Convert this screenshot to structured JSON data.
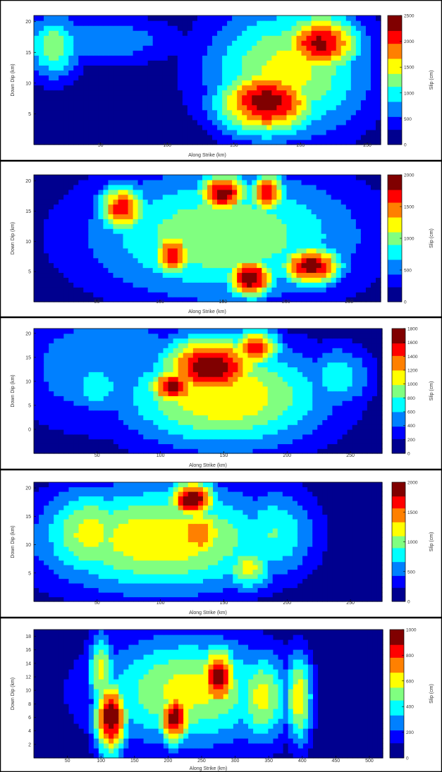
{
  "colormap": [
    "#00008f",
    "#0000ff",
    "#0080ff",
    "#00ffff",
    "#80ff80",
    "#ffff00",
    "#ff8000",
    "#ff0000",
    "#800000"
  ],
  "chart_data": [
    {
      "type": "heatmap",
      "title": "",
      "xlabel": "Along Strike (km)",
      "ylabel": "Down Dip (km)",
      "colorbar_label": "Slip (cm)",
      "xlim": [
        0,
        260
      ],
      "ylim": [
        0,
        21
      ],
      "xticks": [
        50,
        100,
        150,
        200,
        250
      ],
      "yticks": [
        5,
        10,
        15,
        20
      ],
      "clim": [
        0,
        2500
      ],
      "cticks": [
        0,
        500,
        1000,
        1500,
        2000,
        2500
      ],
      "peaks": [
        {
          "x": 215,
          "y": 16.5,
          "value": 2300,
          "sx": 22,
          "sy": 3.5
        },
        {
          "x": 175,
          "y": 7,
          "value": 2400,
          "sx": 28,
          "sy": 4
        },
        {
          "x": 190,
          "y": 12,
          "value": 1500,
          "sx": 45,
          "sy": 8
        },
        {
          "x": 15,
          "y": 16,
          "value": 1300,
          "sx": 15,
          "sy": 4
        },
        {
          "x": 50,
          "y": 17,
          "value": 800,
          "sx": 45,
          "sy": 3
        }
      ]
    },
    {
      "type": "heatmap",
      "title": "",
      "xlabel": "Along Strike (km)",
      "ylabel": "Down Dip (km)",
      "colorbar_label": "Slip (cm)",
      "xlim": [
        0,
        275
      ],
      "ylim": [
        0,
        21
      ],
      "xticks": [
        50,
        100,
        150,
        200,
        250
      ],
      "yticks": [
        5,
        10,
        15,
        20
      ],
      "clim": [
        0,
        2000
      ],
      "cticks": [
        0,
        500,
        1000,
        1500,
        2000
      ],
      "peaks": [
        {
          "x": 70,
          "y": 15.5,
          "value": 1700,
          "sx": 14,
          "sy": 3
        },
        {
          "x": 150,
          "y": 18,
          "value": 1900,
          "sx": 15,
          "sy": 2.5
        },
        {
          "x": 185,
          "y": 18,
          "value": 1800,
          "sx": 10,
          "sy": 2.5
        },
        {
          "x": 110,
          "y": 8,
          "value": 1700,
          "sx": 12,
          "sy": 3
        },
        {
          "x": 172,
          "y": 4,
          "value": 2000,
          "sx": 14,
          "sy": 2.5
        },
        {
          "x": 220,
          "y": 6,
          "value": 1900,
          "sx": 18,
          "sy": 2.5
        },
        {
          "x": 150,
          "y": 11,
          "value": 1100,
          "sx": 80,
          "sy": 8
        }
      ]
    },
    {
      "type": "heatmap",
      "title": "",
      "xlabel": "Along Strike (km)",
      "ylabel": "Down Dip (km)",
      "colorbar_label": "Slip (cm)",
      "xlim": [
        0,
        275
      ],
      "ylim": [
        -5,
        21
      ],
      "xticks": [
        50,
        100,
        150,
        200,
        250
      ],
      "yticks": [
        0,
        5,
        10,
        15,
        20
      ],
      "clim": [
        0,
        1800
      ],
      "cticks": [
        0,
        200,
        400,
        600,
        800,
        1000,
        1200,
        1400,
        1600,
        1800
      ],
      "peaks": [
        {
          "x": 140,
          "y": 13,
          "value": 1750,
          "sx": 30,
          "sy": 5
        },
        {
          "x": 110,
          "y": 9,
          "value": 1700,
          "sx": 15,
          "sy": 3
        },
        {
          "x": 175,
          "y": 17,
          "value": 1500,
          "sx": 15,
          "sy": 3
        },
        {
          "x": 150,
          "y": 7,
          "value": 1200,
          "sx": 60,
          "sy": 8
        },
        {
          "x": 50,
          "y": 9,
          "value": 800,
          "sx": 15,
          "sy": 4
        },
        {
          "x": 240,
          "y": 11,
          "value": 750,
          "sx": 20,
          "sy": 5
        },
        {
          "x": 60,
          "y": 13,
          "value": 600,
          "sx": 60,
          "sy": 10
        }
      ]
    },
    {
      "type": "heatmap",
      "title": "",
      "xlabel": "Along Strike (km)",
      "ylabel": "Down Dip (km)",
      "colorbar_label": "Slip (cm)",
      "xlim": [
        0,
        275
      ],
      "ylim": [
        0,
        21
      ],
      "xticks": [
        50,
        100,
        150,
        200,
        250
      ],
      "yticks": [
        5,
        10,
        15,
        20
      ],
      "clim": [
        0,
        2000
      ],
      "cticks": [
        0,
        500,
        1000,
        1500,
        2000
      ],
      "peaks": [
        {
          "x": 125,
          "y": 18,
          "value": 2000,
          "sx": 14,
          "sy": 2.5
        },
        {
          "x": 130,
          "y": 12,
          "value": 1500,
          "sx": 18,
          "sy": 4
        },
        {
          "x": 100,
          "y": 11,
          "value": 1300,
          "sx": 70,
          "sy": 7
        },
        {
          "x": 45,
          "y": 12,
          "value": 1200,
          "sx": 30,
          "sy": 6
        },
        {
          "x": 170,
          "y": 6,
          "value": 1200,
          "sx": 15,
          "sy": 3
        },
        {
          "x": 190,
          "y": 12,
          "value": 900,
          "sx": 25,
          "sy": 6
        }
      ]
    },
    {
      "type": "heatmap",
      "title": "",
      "xlabel": "Along Strike (km)",
      "ylabel": "Down Dip (km)",
      "colorbar_label": "Slip (cm)",
      "xlim": [
        0,
        520
      ],
      "ylim": [
        0,
        19
      ],
      "xticks": [
        50,
        100,
        150,
        200,
        250,
        300,
        350,
        400,
        450,
        500
      ],
      "yticks": [
        2,
        4,
        6,
        8,
        10,
        12,
        14,
        16,
        18
      ],
      "clim": [
        0,
        1000
      ],
      "cticks": [
        0,
        200,
        400,
        600,
        800,
        1000
      ],
      "peaks": [
        {
          "x": 115,
          "y": 6,
          "value": 1000,
          "sx": 18,
          "sy": 4
        },
        {
          "x": 210,
          "y": 6,
          "value": 950,
          "sx": 18,
          "sy": 3
        },
        {
          "x": 275,
          "y": 12,
          "value": 950,
          "sx": 20,
          "sy": 3.5
        },
        {
          "x": 100,
          "y": 13,
          "value": 600,
          "sx": 15,
          "sy": 4
        },
        {
          "x": 230,
          "y": 10,
          "value": 600,
          "sx": 100,
          "sy": 6
        },
        {
          "x": 340,
          "y": 9,
          "value": 600,
          "sx": 30,
          "sy": 5
        },
        {
          "x": 395,
          "y": 9,
          "value": 650,
          "sx": 15,
          "sy": 5
        }
      ]
    }
  ]
}
